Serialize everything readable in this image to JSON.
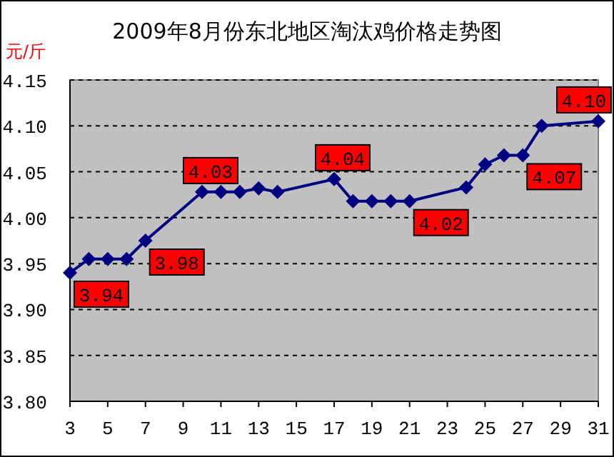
{
  "chart_data": {
    "type": "line",
    "title": "2009年8月份东北地区淘汰鸡价格走势图",
    "ylabel": "元/斤",
    "x": [
      3,
      4,
      5,
      6,
      7,
      10,
      11,
      12,
      13,
      14,
      17,
      18,
      19,
      20,
      21,
      24,
      25,
      26,
      27,
      28,
      31
    ],
    "series": [
      {
        "color": "#000080",
        "values": [
          3.94,
          3.955,
          3.955,
          3.955,
          3.975,
          4.028,
          4.028,
          4.028,
          4.032,
          4.028,
          4.042,
          4.018,
          4.018,
          4.018,
          4.018,
          4.033,
          4.058,
          4.068,
          4.068,
          4.1,
          4.105
        ],
        "value_labels": [
          "3.94",
          null,
          null,
          null,
          "3.98",
          "4.03",
          null,
          null,
          null,
          null,
          "4.04",
          null,
          null,
          null,
          "4.02",
          null,
          null,
          null,
          "4.07",
          null,
          "4.10"
        ]
      }
    ],
    "xlim": [
      3,
      31
    ],
    "xticks": [
      3,
      5,
      7,
      9,
      11,
      13,
      15,
      17,
      19,
      21,
      23,
      25,
      27,
      29,
      31
    ],
    "ylim": [
      3.8,
      4.15
    ],
    "yticks": [
      {
        "value": 3.8,
        "label": "3.80"
      },
      {
        "value": 3.85,
        "label": "3.85"
      },
      {
        "value": 3.9,
        "label": "3.90"
      },
      {
        "value": 3.95,
        "label": "3.95"
      },
      {
        "value": 4.0,
        "label": "4.00"
      },
      {
        "value": 4.05,
        "label": "4.05"
      },
      {
        "value": 4.1,
        "label": "4.10"
      },
      {
        "value": 4.15,
        "label": "4.15"
      }
    ],
    "grid": "y",
    "marker": "diamond",
    "line_style": "solid"
  }
}
